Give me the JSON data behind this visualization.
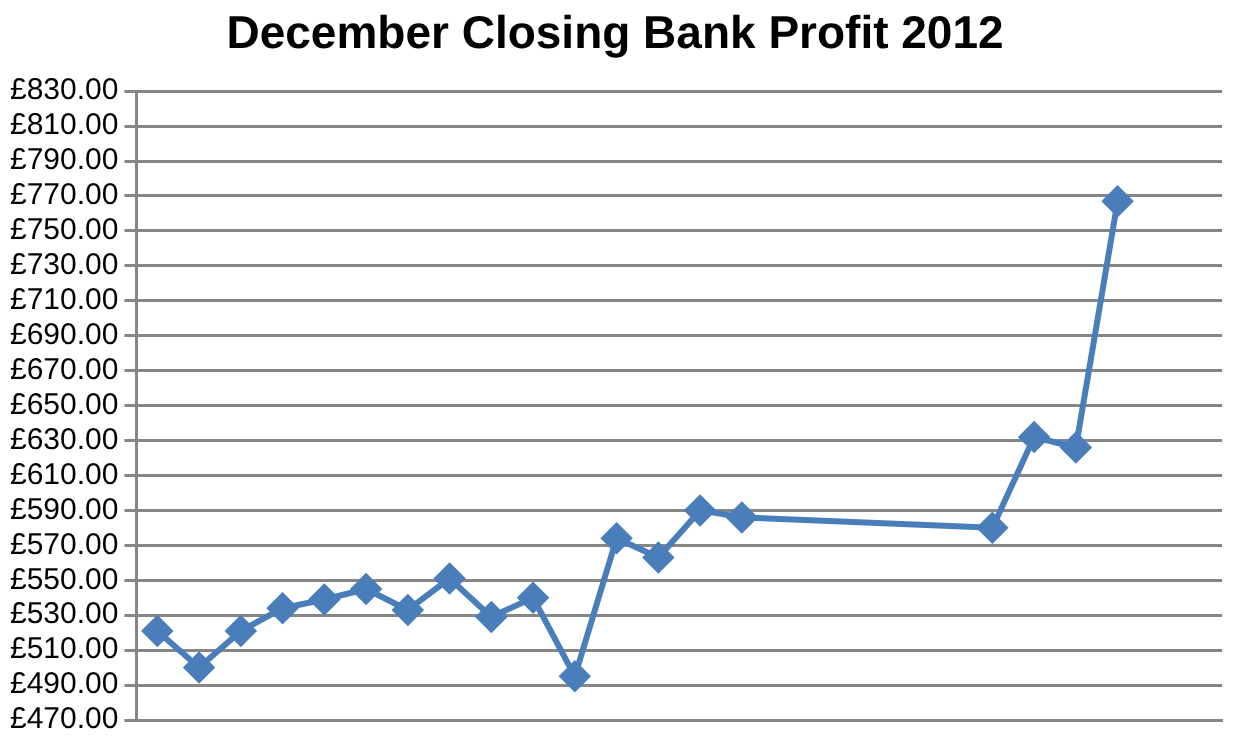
{
  "chart_data": {
    "type": "line",
    "title": "December Closing Bank Profit 2012",
    "categories": [
      null,
      null,
      null,
      null,
      null,
      null,
      null,
      null,
      null,
      null,
      null,
      null,
      null,
      null,
      null,
      null,
      null,
      null,
      null,
      null,
      null,
      null,
      null,
      null,
      null,
      null
    ],
    "series": [
      {
        "color": "#4a7ebb",
        "values": [
          521,
          500,
          521,
          534,
          539,
          545,
          533,
          551,
          529,
          540,
          495,
          574,
          563,
          590,
          586,
          null,
          null,
          null,
          null,
          null,
          580,
          632,
          626,
          767,
          null,
          null
        ]
      }
    ],
    "ylim": [
      470,
      830
    ],
    "yticks": [
      {
        "value": 470,
        "label": "£470.00"
      },
      {
        "value": 490,
        "label": "£490.00"
      },
      {
        "value": 510,
        "label": "£510.00"
      },
      {
        "value": 530,
        "label": "£530.00"
      },
      {
        "value": 550,
        "label": "£550.00"
      },
      {
        "value": 570,
        "label": "£570.00"
      },
      {
        "value": 590,
        "label": "£590.00"
      },
      {
        "value": 610,
        "label": "£610.00"
      },
      {
        "value": 630,
        "label": "£630.00"
      },
      {
        "value": 650,
        "label": "£650.00"
      },
      {
        "value": 670,
        "label": "£670.00"
      },
      {
        "value": 690,
        "label": "£690.00"
      },
      {
        "value": 710,
        "label": "£710.00"
      },
      {
        "value": 730,
        "label": "£730.00"
      },
      {
        "value": 750,
        "label": "£750.00"
      },
      {
        "value": 770,
        "label": "£770.00"
      },
      {
        "value": 790,
        "label": "£790.00"
      },
      {
        "value": 810,
        "label": "£810.00"
      },
      {
        "value": 830,
        "label": "£830.00"
      }
    ],
    "grid": "y",
    "legend": false,
    "marker": "diamond",
    "line_style": "solid",
    "tick_labels": "y"
  }
}
